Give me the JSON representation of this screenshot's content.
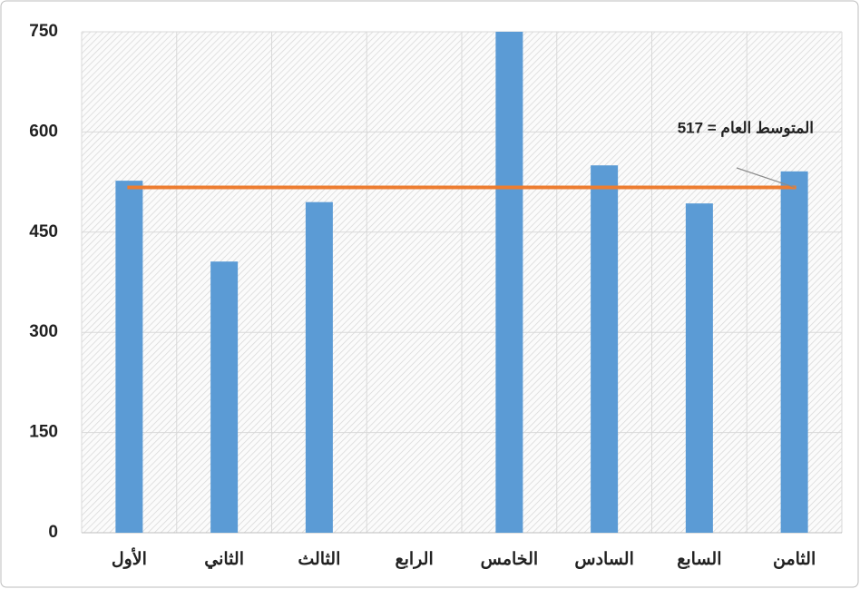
{
  "chart_data": {
    "type": "bar",
    "categories": [
      "الأول",
      "الثاني",
      "الثالث",
      "الرابع",
      "الخامس",
      "السادس",
      "السابع",
      "الثامن"
    ],
    "values": [
      527,
      406,
      495,
      null,
      750,
      550,
      493,
      541
    ],
    "color": "#5b9bd5",
    "average": 517,
    "average_color": "#ed7d31",
    "annotation": "المتوسط العام = 517",
    "ylim": [
      0,
      750
    ],
    "yticks": [
      0,
      150,
      300,
      450,
      600,
      750
    ],
    "grid": true
  }
}
